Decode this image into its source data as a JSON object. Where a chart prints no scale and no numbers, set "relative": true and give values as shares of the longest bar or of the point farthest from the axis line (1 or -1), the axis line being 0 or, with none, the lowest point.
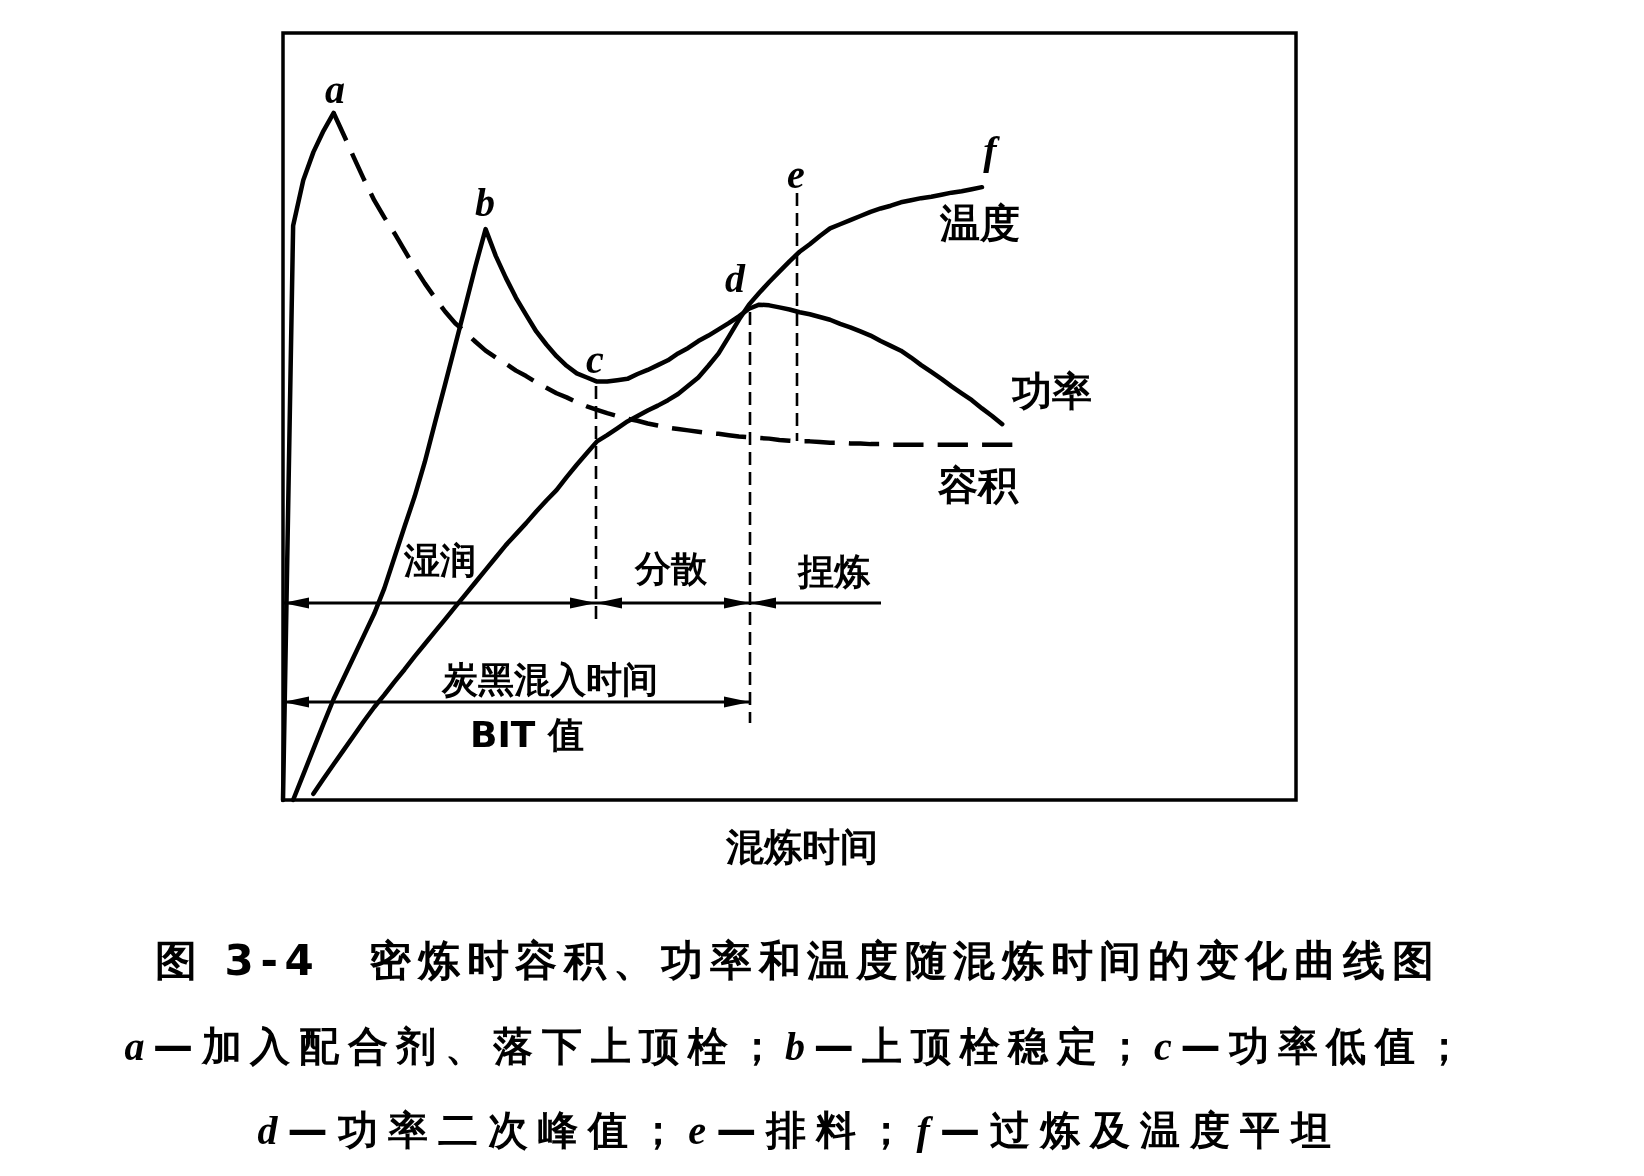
{
  "chart_data": {
    "type": "line",
    "relative": true,
    "title": "图 3-4　密炼时容积、功率和温度随混炼时间的变化曲线图",
    "xlabel": "混炼时间",
    "categories": [
      null,
      null,
      null,
      null,
      null,
      null,
      null,
      null,
      null,
      null,
      null,
      null,
      null,
      null,
      null,
      null,
      null,
      null,
      null,
      null,
      null,
      null,
      null,
      null,
      null,
      null,
      null,
      null,
      null,
      null,
      null,
      null,
      null,
      null,
      null,
      null,
      null,
      null,
      null,
      null,
      null,
      null,
      null,
      null,
      null,
      null,
      null,
      null,
      null,
      null,
      null,
      null,
      null,
      null,
      null,
      null,
      null,
      null,
      null,
      null,
      null,
      null,
      null,
      null,
      null,
      null,
      null,
      null,
      null,
      null,
      null,
      null,
      null,
      null,
      null,
      null,
      null,
      null,
      null,
      null,
      null,
      null,
      null,
      null,
      null,
      null,
      null,
      null,
      null,
      null,
      null,
      null,
      null,
      null,
      null,
      null,
      null,
      null,
      null,
      null,
      null
    ],
    "series": [
      {
        "color": "#000000",
        "line_style": "solid",
        "values": [
          0,
          0.836,
          0.902,
          0.943,
          0.974,
          1,
          null,
          null,
          null,
          null,
          null,
          null,
          null,
          null,
          null,
          null,
          null,
          null,
          null,
          null,
          null,
          null,
          null,
          null,
          null,
          null,
          null,
          null,
          null,
          null,
          null,
          null,
          null,
          null,
          null,
          null,
          null,
          null,
          null,
          null,
          null,
          null,
          null,
          null,
          null,
          null,
          null,
          null,
          null,
          null,
          null,
          null,
          null,
          null,
          null,
          null,
          null,
          null,
          null,
          null,
          null,
          null,
          null,
          null,
          null,
          null,
          null,
          null,
          null,
          null,
          null,
          null,
          null,
          null,
          null,
          null,
          null,
          null,
          null,
          null,
          null,
          null,
          null,
          null,
          null,
          null,
          null,
          null,
          null,
          null,
          null,
          null,
          null,
          null,
          null,
          null,
          null,
          null,
          null,
          null,
          null
        ]
      },
      {
        "name": "容积",
        "color": "#000000",
        "line_style": "dashed",
        "values": [
          null,
          null,
          null,
          null,
          null,
          1,
          0.968,
          0.935,
          0.903,
          0.873,
          0.848,
          0.825,
          0.8,
          0.775,
          0.752,
          0.731,
          0.711,
          0.694,
          0.681,
          0.667,
          0.654,
          0.644,
          0.635,
          0.625,
          0.617,
          0.608,
          0.6,
          0.592,
          0.586,
          0.579,
          0.573,
          0.568,
          0.563,
          0.559,
          0.555,
          0.552,
          0.548,
          0.545,
          0.542,
          0.54,
          0.538,
          0.536,
          0.534,
          0.533,
          0.531,
          0.529,
          0.528,
          0.527,
          0.526,
          0.524,
          0.523,
          0.522,
          0.522,
          0.521,
          0.52,
          0.52,
          0.519,
          0.519,
          0.518,
          0.518,
          0.517,
          0.517,
          0.517,
          0.517,
          0.517,
          0.517,
          0.517,
          0.517,
          0.517,
          0.517,
          0.517,
          0.517,
          0.517,
          null,
          null,
          null,
          null,
          null,
          null,
          null,
          null,
          null,
          null,
          null,
          null,
          null,
          null,
          null,
          null,
          null,
          null,
          null,
          null,
          null,
          null,
          null,
          null,
          null,
          null,
          null,
          null
        ]
      },
      {
        "name": "功率",
        "color": "#000000",
        "line_style": "solid",
        "values": [
          null,
          0,
          0.037,
          0.074,
          0.111,
          0.147,
          0.178,
          0.209,
          0.24,
          0.271,
          0.308,
          0.353,
          0.398,
          0.442,
          0.492,
          0.549,
          0.605,
          0.662,
          0.719,
          0.777,
          0.831,
          0.792,
          0.76,
          0.731,
          0.706,
          0.682,
          0.663,
          0.646,
          0.632,
          0.621,
          0.615,
          0.609,
          0.609,
          0.611,
          0.613,
          0.62,
          0.626,
          0.633,
          0.64,
          0.65,
          0.658,
          0.668,
          0.676,
          0.685,
          0.694,
          0.704,
          0.715,
          0.721,
          0.72,
          0.717,
          0.714,
          0.71,
          0.707,
          0.703,
          0.699,
          0.693,
          0.688,
          0.682,
          0.676,
          0.668,
          0.661,
          0.654,
          0.644,
          0.633,
          0.623,
          0.613,
          0.602,
          0.592,
          0.582,
          0.57,
          0.559,
          0.547,
          null,
          null,
          null,
          null,
          null,
          null,
          null,
          null,
          null,
          null,
          null,
          null,
          null,
          null,
          null,
          null,
          null,
          null,
          null,
          null,
          null,
          null,
          null,
          null,
          null,
          null,
          null,
          null,
          null
        ]
      },
      {
        "name": "温度",
        "color": "#000000",
        "line_style": "solid",
        "values": [
          null,
          null,
          null,
          0.009,
          0.031,
          0.052,
          0.073,
          0.094,
          0.115,
          0.135,
          0.153,
          0.172,
          0.19,
          0.209,
          0.227,
          0.245,
          0.263,
          0.281,
          0.299,
          0.317,
          0.335,
          0.353,
          0.371,
          0.387,
          0.403,
          0.42,
          0.436,
          0.451,
          0.47,
          0.488,
          0.505,
          0.522,
          0.531,
          0.541,
          0.551,
          0.559,
          0.567,
          0.574,
          0.582,
          0.591,
          0.603,
          0.615,
          0.632,
          0.65,
          0.674,
          0.699,
          0.721,
          0.738,
          0.754,
          0.769,
          0.784,
          0.798,
          0.809,
          0.821,
          0.832,
          0.838,
          0.844,
          0.85,
          0.856,
          0.861,
          0.865,
          0.87,
          0.873,
          0.876,
          0.878,
          0.881,
          0.884,
          0.886,
          0.889,
          0.892,
          null,
          null,
          null,
          null,
          null,
          null,
          null,
          null,
          null,
          null,
          null,
          null,
          null,
          null,
          null,
          null,
          null,
          null,
          null,
          null,
          null,
          null,
          null,
          null,
          null,
          null,
          null,
          null,
          null,
          null,
          null
        ]
      }
    ],
    "annotations": [
      "a",
      "b",
      "c",
      "d",
      "e",
      "f",
      "湿润",
      "分散",
      "捏炼",
      "炭黑混入时间",
      "BIT 值",
      "*a*—加入配合剂、落下上顶栓；*b*—上顶栓稳定；*c*—功率低值；",
      "*d*—功率二次峰值；*e*—排料；*f*—过炼及温度平坦"
    ]
  }
}
